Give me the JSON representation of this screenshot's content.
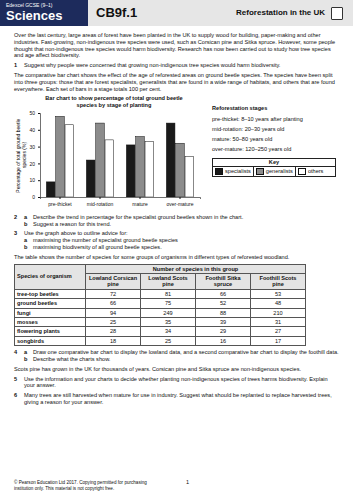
{
  "header": {
    "board": "Edexcel GCSE (9–1)",
    "subject": "Sciences",
    "code": "CB9f.1",
    "title": "Reforestation in the UK"
  },
  "intro": "Over the last century, large areas of forest have been planted in the UK to supply wood for building, paper-making and other industries. Fast-growing, non-indigenous tree species were used, such as Corsican pine and Sitka spruce. However, some people thought that non-indigenous tree species would harm biodiversity. Research has now been carried out to study how tree species and age affect biodiversity.",
  "q1": {
    "number": "1",
    "text": "Suggest why people were concerned that growing non-indigenous tree species would harm biodiversity."
  },
  "chart_intro": "The comparative bar chart shows the effect of the age of reforested areas on ground beetle species. The species have been split into three groups: those that are forest specialists, generalists that are found in a wide range of habitats, and others that are found everywhere. Each set of bars in a stage totals 100 per cent.",
  "chart_data": {
    "type": "bar",
    "title": "Bar chart to show percentage of total ground beetle species by stage of planting",
    "y_label": "Percentage of total ground beetle species (%)",
    "categories": [
      "pre-thicket",
      "mid-rotation",
      "mature",
      "over-mature"
    ],
    "series": [
      {
        "name": "specialists",
        "color": "#1a1a1a",
        "values": [
          9,
          22,
          31,
          44
        ]
      },
      {
        "name": "generalists",
        "color": "#8c8c8c",
        "values": [
          48,
          44,
          36,
          32
        ]
      },
      {
        "name": "others",
        "color": "#ffffff",
        "values": [
          43,
          34,
          33,
          24
        ]
      }
    ],
    "ylim": [
      0,
      50
    ],
    "yticks": [
      0,
      10,
      20,
      30,
      40,
      50
    ],
    "grid": false,
    "legend": "right"
  },
  "stages": {
    "title": "Reforestation stages",
    "items": [
      "pre-thicket: 8–10 years after planting",
      "mid-rotation: 20–30 years old",
      "mature: 50–80 years old",
      "over-mature: 120–250 years old"
    ]
  },
  "key_title": "Key",
  "q2": {
    "number": "2",
    "parts": [
      {
        "label": "a",
        "text": "Describe the trend in percentage for the specialist ground beetles shown in the chart."
      },
      {
        "label": "b",
        "text": "Suggest a reason for this trend."
      }
    ]
  },
  "q3": {
    "number": "3",
    "text": "Use the graph above to outline advice for:",
    "parts": [
      {
        "label": "a",
        "text": "maximising the number of specialist ground beetle species"
      },
      {
        "label": "b",
        "text": "maximising biodiversity of all ground beetle species."
      }
    ]
  },
  "table_intro": "The table shows the number of species for some groups of organisms in different types of reforested woodland.",
  "table": {
    "row_header": "Species of organism",
    "group_header": "Number of species in this group",
    "columns": [
      "Lowland Corsican pine",
      "Lowland Scots pine",
      "Foothill Sitka spruce",
      "Foothill Scots pine"
    ],
    "rows": [
      [
        "tree-top beetles",
        72,
        81,
        66,
        53
      ],
      [
        "ground beetles",
        66,
        75,
        52,
        48
      ],
      [
        "fungi",
        94,
        249,
        88,
        210
      ],
      [
        "mosses",
        25,
        35,
        39,
        31
      ],
      [
        "flowering plants",
        28,
        34,
        29,
        27
      ],
      [
        "songbirds",
        18,
        25,
        16,
        17
      ]
    ]
  },
  "q4": {
    "number": "4",
    "parts": [
      {
        "label": "a",
        "text": "Draw one comparative bar chart to display the lowland data, and a second comparative bar chart to display the foothill data."
      },
      {
        "label": "b",
        "text": "Describe what the charts show."
      }
    ]
  },
  "note": "Scots pine has grown in the UK for thousands of years. Corsican pine and Sitka spruce are non-indigenous species.",
  "q5": {
    "number": "5",
    "text": "Use the information and your charts to decide whether planting non-indigenous species of trees harms biodiversity. Explain your answer."
  },
  "q6": {
    "number": "6",
    "text": "Many trees are still harvested when mature for use in industry. Suggest what should be replanted to replace harvested trees, giving a reason for your answer."
  },
  "footer": {
    "copyright": "© Pearson Education Ltd 2017. Copying permitted for purchasing institution only. This material is not copyright free.",
    "page": "1"
  }
}
